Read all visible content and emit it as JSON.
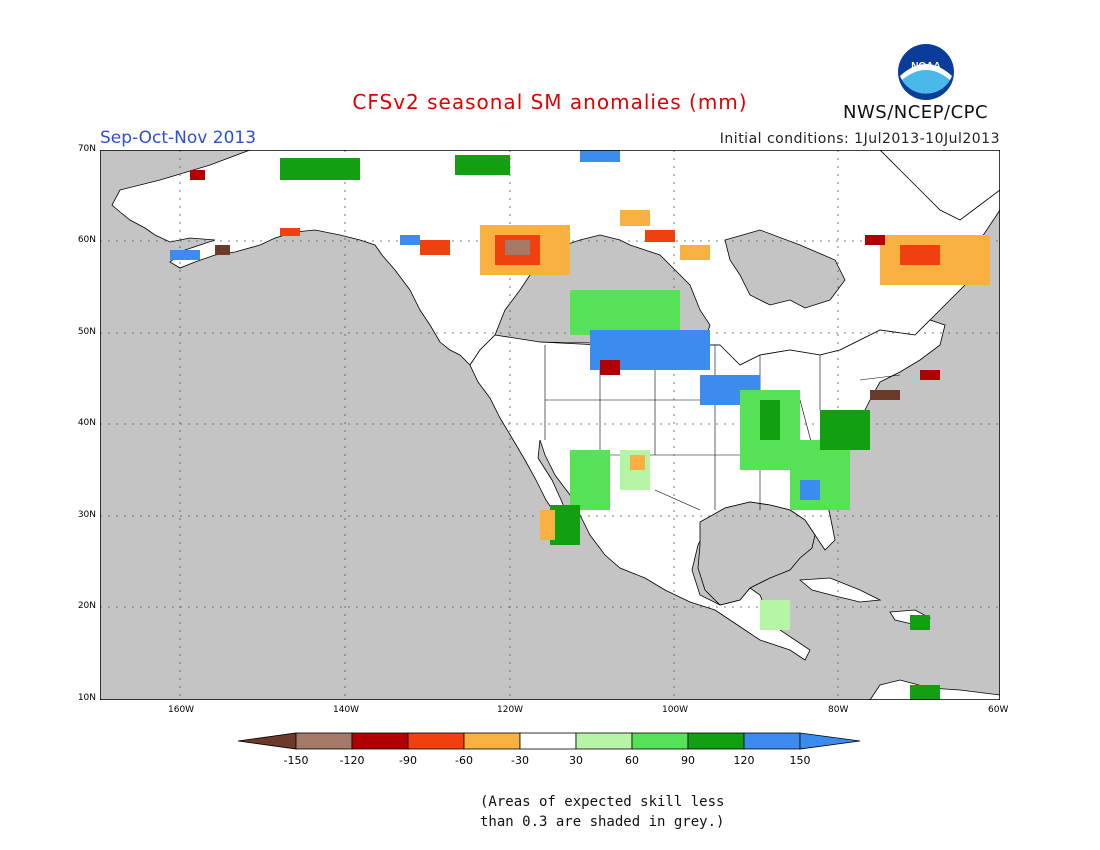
{
  "title": "CFSv2 seasonal SM anomalies (mm)",
  "season": "Sep-Oct-Nov 2013",
  "initial_conditions": "Initial conditions: 1Jul2013-10Jul2013",
  "agency": "NWS/NCEP/CPC",
  "logo_text": "NOAA",
  "footnote": {
    "line1": "(Areas of expected skill less",
    "line2": "than 0.3 are shaded in grey.)"
  },
  "lat_labels": [
    "70N",
    "60N",
    "50N",
    "40N",
    "30N",
    "20N",
    "10N"
  ],
  "lon_labels": [
    "160W",
    "140W",
    "120W",
    "100W",
    "80W",
    "60W"
  ],
  "legend": {
    "labels": [
      "-150",
      "-120",
      "-90",
      "-60",
      "-30",
      "30",
      "60",
      "90",
      "120",
      "150"
    ],
    "colors": [
      "#6b3a2a",
      "#a57868",
      "#b00000",
      "#f04010",
      "#f8b040",
      "#ffffff",
      "#b6f5a6",
      "#56e156",
      "#12a012",
      "#3c8cf0",
      "#3c8cf0"
    ]
  },
  "colors": {
    "ocean": "#c4c4c4",
    "land": "#ffffff",
    "no_skill": "#c4c4c4"
  }
}
